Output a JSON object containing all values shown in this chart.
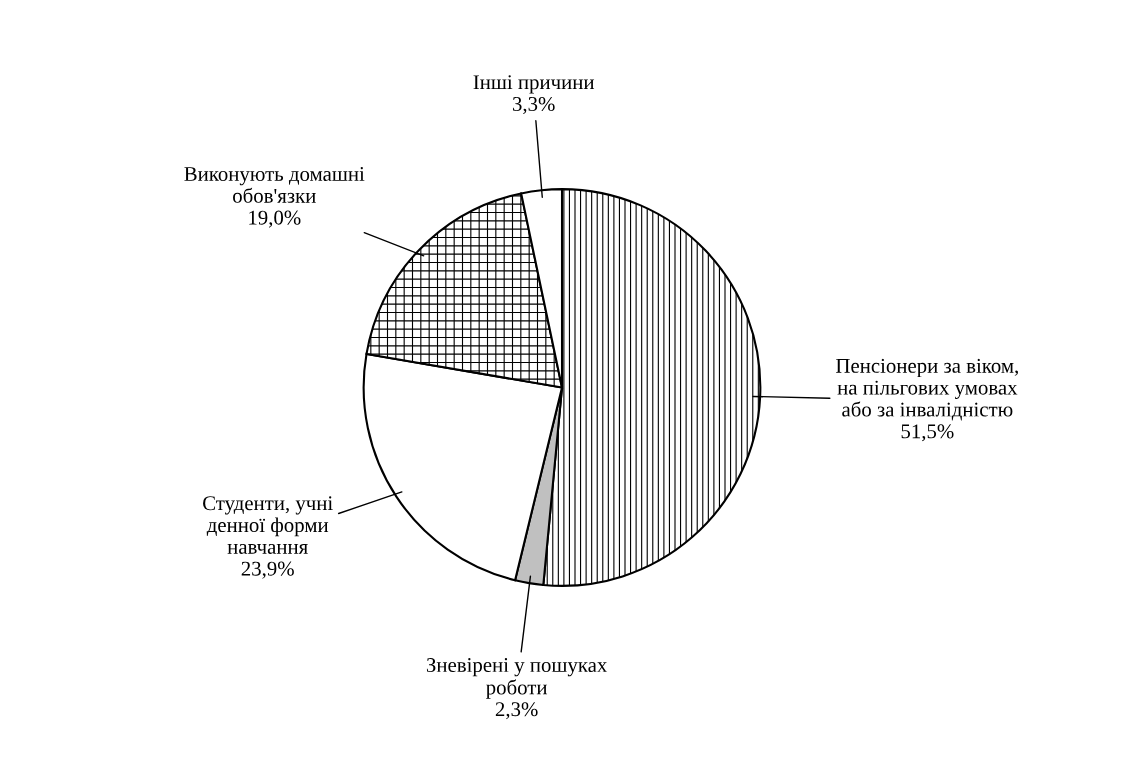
{
  "chart_data": {
    "type": "pie",
    "categories": [
      "Пенсіонери за віком,\nна пільгових умовах\nабо за інвалідністю",
      "Зневірені у пошуках\nроботи",
      "Студенти, учні\nденної форми\nнавчання",
      "Виконують домашні\nобов'язки",
      "Інші причини"
    ],
    "values": [
      51.5,
      2.3,
      23.9,
      19.0,
      3.3
    ],
    "value_labels": [
      "51,5%",
      "2,3%",
      "23,9%",
      "19,0%",
      "3,3%"
    ],
    "colors": [
      "#ffffff",
      "#c0c0c0",
      "#ffffff",
      "#ffffff",
      "#ffffff"
    ]
  }
}
